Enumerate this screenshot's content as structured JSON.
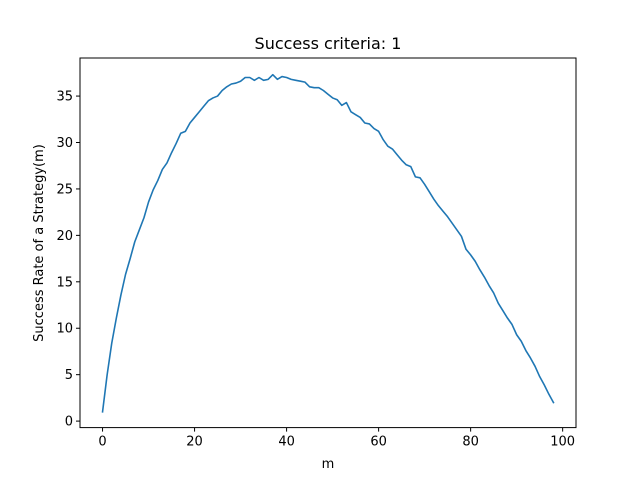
{
  "chart_data": {
    "type": "line",
    "title": "Success criteria: 1",
    "xlabel": "m",
    "ylabel": "Success Rate of a Strategy(m)",
    "xlim": [
      -4.9,
      102.9
    ],
    "ylim": [
      -0.7,
      39.1
    ],
    "xticks": [
      0,
      20,
      40,
      60,
      80,
      100
    ],
    "yticks": [
      0,
      5,
      10,
      15,
      20,
      25,
      30,
      35
    ],
    "grid": false,
    "series_color": "#1f77b4",
    "series": [
      {
        "x": [
          0,
          1,
          2,
          3,
          4,
          5,
          6,
          7,
          8,
          9,
          10,
          11,
          12,
          13,
          14,
          15,
          16,
          17,
          18,
          19,
          20,
          21,
          22,
          23,
          24,
          25,
          26,
          27,
          28,
          29,
          30,
          31,
          32,
          33,
          34,
          35,
          36,
          37,
          38,
          39,
          40,
          41,
          42,
          43,
          44,
          45,
          46,
          47,
          48,
          49,
          50,
          51,
          52,
          53,
          54,
          55,
          56,
          57,
          58,
          59,
          60,
          61,
          62,
          63,
          64,
          65,
          66,
          67,
          68,
          69,
          70,
          71,
          72,
          73,
          74,
          75,
          76,
          77,
          78,
          79,
          80,
          81,
          82,
          83,
          84,
          85,
          86,
          87,
          88,
          89,
          90,
          91,
          92,
          93,
          94,
          95,
          96,
          97,
          98
        ],
        "values": [
          1.0,
          5.0,
          8.4,
          11.1,
          13.6,
          15.8,
          17.5,
          19.3,
          20.6,
          21.9,
          23.6,
          24.9,
          25.9,
          27.1,
          27.8,
          28.9,
          29.9,
          31.0,
          31.2,
          32.1,
          32.7,
          33.3,
          33.9,
          34.5,
          34.8,
          35.0,
          35.6,
          36.0,
          36.3,
          36.4,
          36.6,
          37.0,
          37.0,
          36.7,
          37.0,
          36.7,
          36.8,
          37.3,
          36.8,
          37.1,
          37.0,
          36.8,
          36.7,
          36.6,
          36.5,
          36.0,
          35.9,
          35.9,
          35.6,
          35.2,
          34.8,
          34.6,
          34.0,
          34.3,
          33.3,
          33.0,
          32.7,
          32.1,
          32.0,
          31.5,
          31.2,
          30.3,
          29.6,
          29.3,
          28.7,
          28.1,
          27.6,
          27.4,
          26.3,
          26.2,
          25.5,
          24.7,
          23.9,
          23.2,
          22.6,
          22.0,
          21.3,
          20.6,
          19.9,
          18.5,
          17.9,
          17.2,
          16.3,
          15.5,
          14.6,
          13.8,
          12.7,
          11.9,
          11.1,
          10.4,
          9.3,
          8.6,
          7.6,
          6.8,
          5.9,
          4.8,
          3.9,
          2.9,
          2.0
        ]
      }
    ]
  }
}
